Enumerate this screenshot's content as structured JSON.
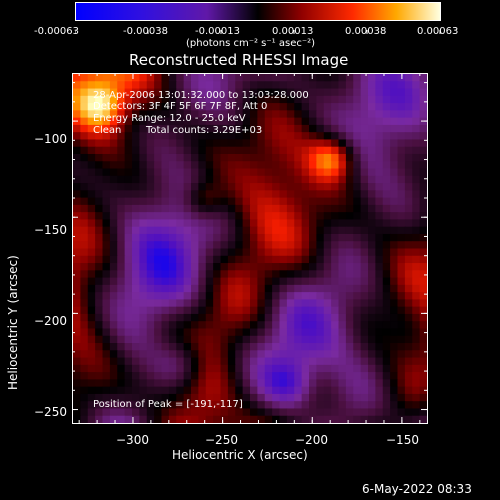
{
  "colorbar": {
    "ticks": [
      "-0.00063",
      "-0.00038",
      "-0.00013",
      "0.00013",
      "0.00038",
      "0.00063"
    ],
    "units": "(photons cm⁻² s⁻¹ asec⁻²)"
  },
  "title": "Reconstructed RHESSI Image",
  "info": {
    "line1": "28-Apr-2006 13:01:32.000 to 13:03:28.000",
    "line2": "Detectors: 3F 4F 5F 6F 7F 8F, Att 0",
    "line3": "Energy Range: 12.0 - 25.0 keV",
    "line4_left": "Clean",
    "line4_right": "Total counts: 3.29E+03"
  },
  "peak_label": "Position of Peak = [-191,-117]",
  "footer_date": "6-May-2022 08:33",
  "chart_data": {
    "type": "heatmap",
    "title": "Reconstructed RHESSI Image",
    "xlabel": "Heliocentric X (arcsec)",
    "ylabel": "Heliocentric Y (arcsec)",
    "xlim": [
      -334,
      -136
    ],
    "ylim": [
      -257,
      -75
    ],
    "x_ticks": [
      -300,
      -250,
      -200,
      -150
    ],
    "y_ticks": [
      -100,
      -150,
      -200,
      -250
    ],
    "x_tick_labels": [
      "−300",
      "−250",
      "−200",
      "−150"
    ],
    "y_tick_labels": [
      "−100",
      "−150",
      "−200",
      "−250"
    ],
    "color_range": [
      -0.00063,
      0.00063
    ],
    "colormap": [
      "#0000ff",
      "#5010c0",
      "#7a2aa0",
      "#4a1040",
      "#000000",
      "#8a0000",
      "#ff2000",
      "#ffa000",
      "#ffffc0"
    ],
    "peak_position": [
      -191,
      -117
    ]
  }
}
